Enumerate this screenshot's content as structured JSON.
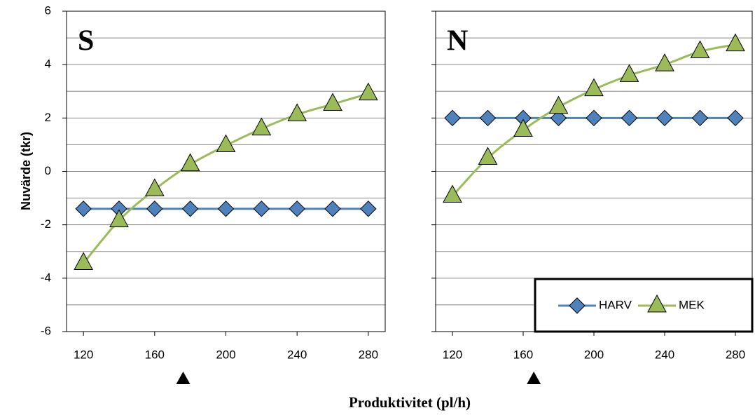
{
  "xlabel": "Produktivitet (pl/h)",
  "ylabel": "Nuvärde (tkr)",
  "chart_data": [
    {
      "type": "line",
      "title": "S",
      "x": [
        120,
        140,
        160,
        180,
        200,
        220,
        240,
        260,
        280
      ],
      "series": [
        {
          "name": "HARV",
          "color": "#4f81bd",
          "marker": "diamond",
          "smooth": false,
          "values": [
            -1.4,
            -1.4,
            -1.4,
            -1.4,
            -1.4,
            -1.4,
            -1.4,
            -1.4,
            -1.4
          ]
        },
        {
          "name": "MEK",
          "color": "#9bbb59",
          "marker": "triangle",
          "smooth": true,
          "values": [
            -3.44,
            -1.84,
            -0.68,
            0.26,
            0.97,
            1.6,
            2.13,
            2.52,
            2.91
          ]
        }
      ],
      "xlim": [
        110.5,
        289.5
      ],
      "xticks": [
        120,
        160,
        200,
        240,
        280
      ],
      "ylim": [
        -6,
        6
      ],
      "yticks": [
        -6,
        -4,
        -2,
        0,
        2,
        4,
        6
      ],
      "minor_yticks": [
        -5,
        -3,
        -1,
        1,
        3,
        5
      ],
      "ytick_labels": true,
      "grid": true,
      "legend": false,
      "marker_x": 176
    },
    {
      "type": "line",
      "title": "N",
      "x": [
        120,
        140,
        160,
        180,
        200,
        220,
        240,
        260,
        280
      ],
      "series": [
        {
          "name": "HARV",
          "color": "#4f81bd",
          "marker": "diamond",
          "smooth": false,
          "values": [
            2.0,
            2.0,
            2.0,
            2.0,
            2.0,
            2.0,
            2.0,
            2.0,
            2.0
          ]
        },
        {
          "name": "MEK",
          "color": "#9bbb59",
          "marker": "triangle",
          "smooth": true,
          "values": [
            -0.92,
            0.5,
            1.55,
            2.41,
            3.07,
            3.6,
            4.0,
            4.49,
            4.75
          ]
        }
      ],
      "xlim": [
        110.5,
        289.5
      ],
      "xticks": [
        120,
        160,
        200,
        240,
        280
      ],
      "ylim": [
        -6,
        6
      ],
      "yticks": [
        -6,
        -4,
        -2,
        0,
        2,
        4,
        6
      ],
      "minor_yticks": [
        -5,
        -3,
        -1,
        1,
        3,
        5
      ],
      "ytick_labels": false,
      "grid": true,
      "legend": "lower right",
      "marker_x": 166
    }
  ]
}
